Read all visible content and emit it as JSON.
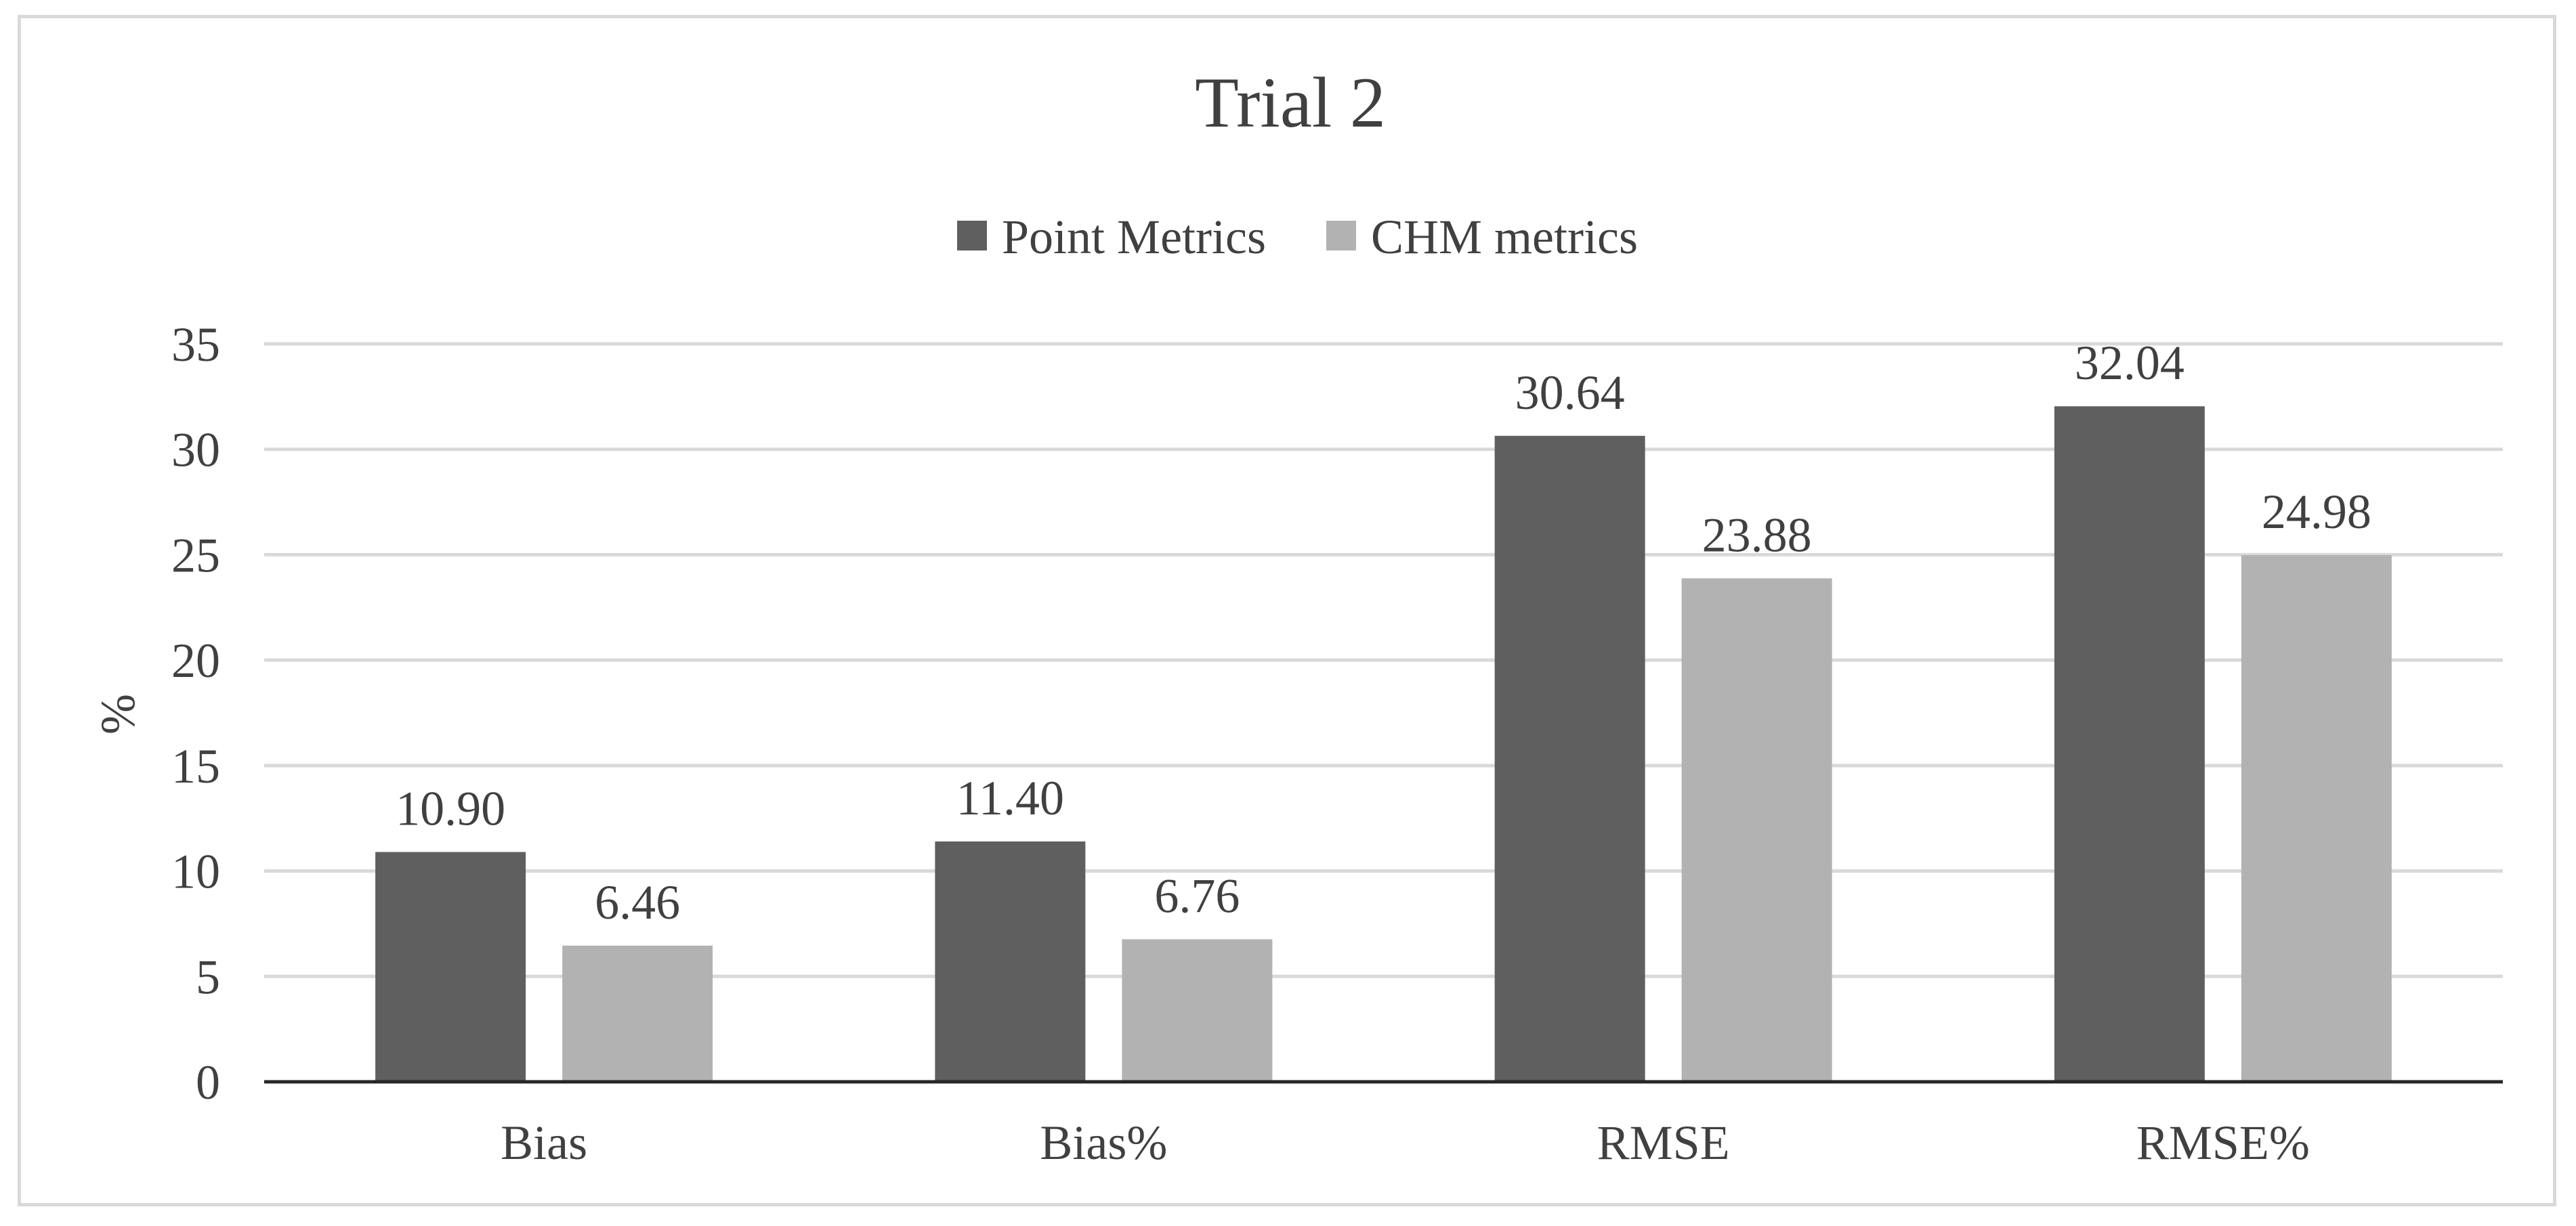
{
  "chart_data": {
    "type": "bar",
    "title": "Trial 2",
    "xlabel": "",
    "ylabel": "%",
    "categories": [
      "Bias",
      "Bias%",
      "RMSE",
      "RMSE%"
    ],
    "series": [
      {
        "name": "Point Metrics",
        "values": [
          10.9,
          11.4,
          30.64,
          32.04
        ],
        "labels": [
          "10.90",
          "11.40",
          "30.64",
          "32.04"
        ],
        "color": "#5f5f5f"
      },
      {
        "name": "CHM metrics",
        "values": [
          6.46,
          6.76,
          23.88,
          24.98
        ],
        "labels": [
          "6.46",
          "6.76",
          "23.88",
          "24.98"
        ],
        "color": "#b2b2b2"
      }
    ],
    "ylim": [
      0,
      35
    ],
    "yticks": [
      0,
      5,
      10,
      15,
      20,
      25,
      30,
      35
    ],
    "grid": true,
    "legend_position": "top"
  },
  "colors": {
    "gridline": "#d9d9d9",
    "axis_line": "#262626",
    "text": "#404040",
    "frame_border": "#d9d9d9"
  }
}
